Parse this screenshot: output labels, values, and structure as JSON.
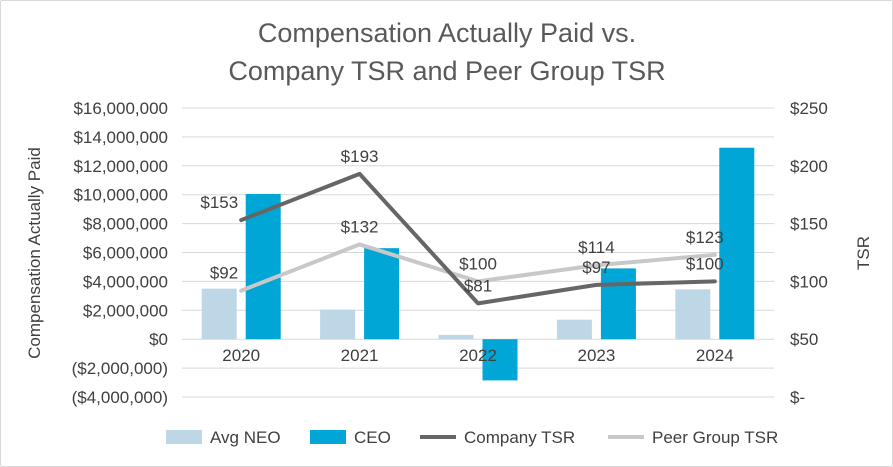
{
  "chart_data": {
    "type": "bar",
    "title": [
      "Compensation Actually Paid vs.",
      "Company TSR and Peer Group TSR"
    ],
    "categories": [
      "2020",
      "2021",
      "2022",
      "2023",
      "2024"
    ],
    "ylabel": "Compensation Actually Paid",
    "y2label": "TSR",
    "ylim": [
      -4000000,
      16000000
    ],
    "y2lim": [
      0,
      250
    ],
    "y_ticks": [
      "$16,000,000",
      "$14,000,000",
      "$12,000,000",
      "$10,000,000",
      "$8,000,000",
      "$6,000,000",
      "$4,000,000",
      "$2,000,000",
      "$0",
      "($2,000,000)",
      "($4,000,000)"
    ],
    "y_tick_values": [
      16000000,
      14000000,
      12000000,
      10000000,
      8000000,
      6000000,
      4000000,
      2000000,
      0,
      -2000000,
      -4000000
    ],
    "y2_ticks": [
      "$250",
      "$200",
      "$150",
      "$100",
      "$50",
      "$-"
    ],
    "y2_tick_values": [
      250,
      200,
      150,
      100,
      50,
      0
    ],
    "series": [
      {
        "name": "Avg NEO",
        "type": "bar",
        "axis": "left",
        "color": "#bdd7e7",
        "values": [
          3500000,
          2050000,
          300000,
          1350000,
          3450000
        ]
      },
      {
        "name": "CEO",
        "type": "bar",
        "axis": "left",
        "color": "#00a6d6",
        "values": [
          10050000,
          6300000,
          -2850000,
          4900000,
          13250000
        ]
      },
      {
        "name": "Company TSR",
        "type": "line",
        "axis": "right",
        "color": "#666666",
        "values": [
          153,
          193,
          81,
          97,
          100
        ],
        "labels": [
          "$153",
          "$193",
          "$81",
          "$97",
          "$100"
        ]
      },
      {
        "name": "Peer Group TSR",
        "type": "line",
        "axis": "right",
        "color": "#c8c8c8",
        "values": [
          92,
          132,
          100,
          114,
          123
        ],
        "labels": [
          "$92",
          "$132",
          "$100",
          "$114",
          "$123"
        ]
      }
    ],
    "legend": [
      "Avg NEO",
      "CEO",
      "Company TSR",
      "Peer Group TSR"
    ],
    "legend_position": "bottom"
  }
}
